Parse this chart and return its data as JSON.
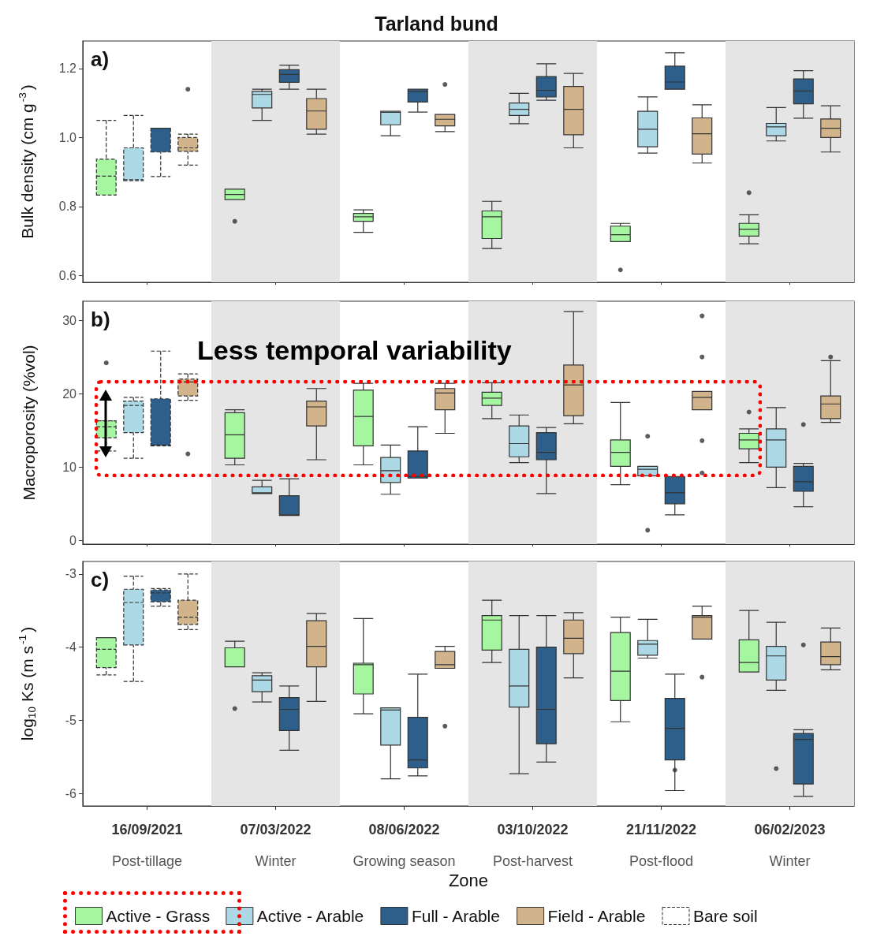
{
  "chart_data": [
    {
      "type": "box",
      "title": "Tarland bund",
      "ylabel": "Bulk density (cm g$^{-3}$)",
      "annotations": [
        "a)"
      ],
      "categories": [
        "16/09/2021\nPost-tillage",
        "07/03/2022\nWinter",
        "08/06/2022\nGrowing season",
        "03/10/2022\nPost-harvest",
        "21/11/2022\nPost-flood",
        "06/02/2023\nWinter"
      ],
      "ylim": [
        0.58,
        1.28
      ],
      "yticks": [
        0.6,
        0.8,
        {
          "value": 1,
          "label": "1.0"
        },
        1.2
      ],
      "tick_labels": "y",
      "grid": false,
      "legend": false,
      "bands": [
        {
          "axis": "x",
          "from": "07/03/2022\nWinter",
          "to": "07/03/2022\nWinter",
          "color": "#e5e5e5"
        },
        {
          "axis": "x",
          "from": "03/10/2022\nPost-harvest",
          "to": "03/10/2022\nPost-harvest",
          "color": "#e5e5e5"
        },
        {
          "axis": "x",
          "from": "06/02/2023\nWinter",
          "to": "06/02/2023\nWinter",
          "color": "#e5e5e5"
        }
      ],
      "series": [
        {
          "color": "#a6f5a0",
          "boxes": [
            {
              "low": 0.833,
              "q1": 0.833,
              "median": 0.888,
              "q3": 0.937,
              "high": 1.05
            },
            {
              "low": 0.82,
              "q1": 0.82,
              "median": 0.835,
              "q3": 0.85,
              "high": 0.85,
              "outliers": [
                0.757
              ]
            },
            {
              "low": 0.725,
              "q1": 0.757,
              "median": 0.77,
              "q3": 0.78,
              "high": 0.79
            },
            {
              "low": 0.678,
              "q1": 0.707,
              "median": 0.77,
              "q3": 0.787,
              "high": 0.815
            },
            {
              "low": 0.698,
              "q1": 0.698,
              "median": 0.718,
              "q3": 0.743,
              "high": 0.751,
              "outliers": [
                0.616
              ]
            },
            {
              "low": 0.692,
              "q1": 0.714,
              "median": 0.734,
              "q3": 0.751,
              "high": 0.776,
              "outliers": [
                0.84
              ]
            }
          ]
        },
        {
          "color": "#add8e6",
          "boxes": [
            {
              "low": 0.875,
              "q1": 0.875,
              "median": 0.878,
              "q3": 0.97,
              "high": 1.064
            },
            {
              "low": 1.05,
              "q1": 1.086,
              "median": 1.125,
              "q3": 1.134,
              "high": 1.14
            },
            {
              "low": 1.005,
              "q1": 1.037,
              "median": 1.073,
              "q3": 1.076,
              "high": 1.076
            },
            {
              "low": 1.04,
              "q1": 1.064,
              "median": 1.082,
              "q3": 1.1,
              "high": 1.128
            },
            {
              "low": 0.955,
              "q1": 0.973,
              "median": 1.024,
              "q3": 1.076,
              "high": 1.118
            },
            {
              "low": 0.99,
              "q1": 1.005,
              "median": 1.031,
              "q3": 1.041,
              "high": 1.087
            }
          ]
        },
        {
          "color": "#2e5f8a",
          "boxes": [
            {
              "low": 0.887,
              "q1": 0.958,
              "median": 1.027,
              "q3": 1.027,
              "high": 1.027
            },
            {
              "low": 1.14,
              "q1": 1.16,
              "median": 1.183,
              "q3": 1.197,
              "high": 1.21
            },
            {
              "low": 1.074,
              "q1": 1.103,
              "median": 1.134,
              "q3": 1.14,
              "high": 1.14
            },
            {
              "low": 1.108,
              "q1": 1.118,
              "median": 1.137,
              "q3": 1.177,
              "high": 1.214
            },
            {
              "low": 1.14,
              "q1": 1.14,
              "median": 1.161,
              "q3": 1.207,
              "high": 1.246
            },
            {
              "low": 1.056,
              "q1": 1.098,
              "median": 1.135,
              "q3": 1.17,
              "high": 1.194
            }
          ]
        },
        {
          "color": "#d2b48c",
          "boxes": [
            {
              "low": 0.92,
              "q1": 0.96,
              "median": 0.97,
              "q3": 1.0,
              "high": 1.01,
              "outliers": [
                1.14
              ]
            },
            {
              "low": 1.01,
              "q1": 1.024,
              "median": 1.077,
              "q3": 1.113,
              "high": 1.14
            },
            {
              "low": 1.017,
              "q1": 1.034,
              "median": 1.053,
              "q3": 1.067,
              "high": 1.067,
              "outliers": [
                1.154
              ]
            },
            {
              "low": 0.97,
              "q1": 1.008,
              "median": 1.082,
              "q3": 1.148,
              "high": 1.186
            },
            {
              "low": 0.926,
              "q1": 0.952,
              "median": 1.011,
              "q3": 1.057,
              "high": 1.095
            },
            {
              "low": 0.958,
              "q1": 1.0,
              "median": 1.027,
              "q3": 1.054,
              "high": 1.092
            }
          ]
        },
        {
          "line_style": "dashed",
          "x": [
            "16/09/2021\nPost-tillage"
          ],
          "values": [
            null
          ]
        }
      ]
    },
    {
      "type": "box",
      "ylabel": "Macroporosity (%vol)",
      "annotations": [
        "b)",
        "Less temporal variability"
      ],
      "categories": [
        "16/09/2021\nPost-tillage",
        "07/03/2022\nWinter",
        "08/06/2022\nGrowing season",
        "03/10/2022\nPost-harvest",
        "21/11/2022\nPost-flood",
        "06/02/2023\nWinter"
      ],
      "ylim": [
        -0.5,
        32.6
      ],
      "yticks": [
        0,
        10,
        20,
        30
      ],
      "tick_labels": "y",
      "grid": false,
      "legend": false,
      "bands": [
        {
          "axis": "x",
          "from": "07/03/2022\nWinter",
          "to": "07/03/2022\nWinter",
          "color": "#e5e5e5"
        },
        {
          "axis": "x",
          "from": "03/10/2022\nPost-harvest",
          "to": "03/10/2022\nPost-harvest",
          "color": "#e5e5e5"
        },
        {
          "axis": "x",
          "from": "06/02/2023\nWinter",
          "to": "06/02/2023\nWinter",
          "color": "#e5e5e5"
        }
      ],
      "series": [
        {
          "color": "#a6f5a0",
          "boxes": [
            {
              "low": 12.2,
              "q1": 14.0,
              "median": 15.5,
              "q3": 16.3,
              "high": 16.3,
              "outliers": [
                24.2
              ]
            },
            {
              "low": 10.3,
              "q1": 11.2,
              "median": 14.4,
              "q3": 17.4,
              "high": 17.8
            },
            {
              "low": 10.3,
              "q1": 12.9,
              "median": 16.9,
              "q3": 20.5,
              "high": 21.4
            },
            {
              "low": 16.6,
              "q1": 18.4,
              "median": 19.4,
              "q3": 20.2,
              "high": 21.5
            },
            {
              "low": 7.6,
              "q1": 10.1,
              "median": 12.0,
              "q3": 13.7,
              "high": 18.8
            },
            {
              "low": 10.6,
              "q1": 12.5,
              "median": 13.7,
              "q3": 14.6,
              "high": 15.2,
              "outliers": [
                17.5
              ]
            }
          ]
        },
        {
          "color": "#add8e6",
          "boxes": [
            {
              "low": 11.2,
              "q1": 14.7,
              "median": 18.4,
              "q3": 19.0,
              "high": 19.5
            },
            {
              "low": 6.4,
              "q1": 6.4,
              "median": 6.5,
              "q3": 7.3,
              "high": 8.2
            },
            {
              "low": 6.3,
              "q1": 7.9,
              "median": 9.5,
              "q3": 11.3,
              "high": 13.0
            },
            {
              "low": 10.6,
              "q1": 11.4,
              "median": 13.2,
              "q3": 15.6,
              "high": 17.1
            },
            {
              "low": 8.8,
              "q1": 8.8,
              "median": 9.7,
              "q3": 10.1,
              "high": 10.1,
              "outliers": [
                14.2,
                1.4
              ]
            },
            {
              "low": 7.2,
              "q1": 10.0,
              "median": 13.7,
              "q3": 15.2,
              "high": 18.1
            }
          ]
        },
        {
          "color": "#2e5f8a",
          "boxes": [
            {
              "low": 12.9,
              "q1": 12.9,
              "median": 13.0,
              "q3": 19.3,
              "high": 25.8
            },
            {
              "low": 3.4,
              "q1": 3.4,
              "median": 3.5,
              "q3": 6.1,
              "high": 8.4
            },
            {
              "low": 8.5,
              "q1": 8.5,
              "median": 8.7,
              "q3": 12.2,
              "high": 15.5
            },
            {
              "low": 6.4,
              "q1": 11.0,
              "median": 12.0,
              "q3": 14.7,
              "high": 15.4
            },
            {
              "low": 3.5,
              "q1": 5.0,
              "median": 6.5,
              "q3": 8.7,
              "high": 8.7
            },
            {
              "low": 4.6,
              "q1": 6.7,
              "median": 8.0,
              "q3": 10.1,
              "high": 10.5,
              "outliers": [
                15.8
              ]
            }
          ]
        },
        {
          "color": "#d2b48c",
          "boxes": [
            {
              "low": 19.1,
              "q1": 19.7,
              "median": 21.6,
              "q3": 22.0,
              "high": 22.7,
              "outliers": [
                11.8
              ]
            },
            {
              "low": 11.0,
              "q1": 15.6,
              "median": 18.2,
              "q3": 19.0,
              "high": 20.7
            },
            {
              "low": 14.6,
              "q1": 17.8,
              "median": 20.1,
              "q3": 20.7,
              "high": 21.4
            },
            {
              "low": 15.9,
              "q1": 17.0,
              "median": 21.2,
              "q3": 23.9,
              "high": 31.2
            },
            {
              "low": 17.8,
              "q1": 17.8,
              "median": 19.5,
              "q3": 20.3,
              "high": 20.3,
              "outliers": [
                30.6,
                25.0,
                13.6,
                9.2
              ]
            },
            {
              "low": 16.1,
              "q1": 16.6,
              "median": 18.6,
              "q3": 19.7,
              "high": 24.5,
              "outliers": [
                25.0
              ]
            }
          ]
        },
        {
          "line_style": "dashed",
          "x": [
            "16/09/2021\nPost-tillage"
          ],
          "values": [
            null
          ]
        }
      ]
    },
    {
      "type": "box",
      "ylabel": "log$_{10}$ Ks (m s$^{-1}$)",
      "xlabel": "Zone",
      "annotations": [
        "c)"
      ],
      "categories": [
        "16/09/2021\nPost-tillage",
        "07/03/2022\nWinter",
        "08/06/2022\nGrowing season",
        "03/10/2022\nPost-harvest",
        "21/11/2022\nPost-flood",
        "06/02/2023\nWinter"
      ],
      "ylim": [
        -6.17,
        -2.83
      ],
      "yticks": [
        -6,
        -5,
        -4,
        -3
      ],
      "grid": false,
      "legend": "bottom",
      "bands": [
        {
          "axis": "x",
          "from": "07/03/2022\nWinter",
          "to": "07/03/2022\nWinter",
          "color": "#e5e5e5"
        },
        {
          "axis": "x",
          "from": "03/10/2022\nPost-harvest",
          "to": "03/10/2022\nPost-harvest",
          "color": "#e5e5e5"
        },
        {
          "axis": "x",
          "from": "06/02/2023\nWinter",
          "to": "06/02/2023\nWinter",
          "color": "#e5e5e5"
        }
      ],
      "series": [
        {
          "name": "Active - Grass",
          "color": "#a6f5a0",
          "boxes": [
            {
              "low": -4.38,
              "q1": -4.28,
              "median": -4.03,
              "q3": -3.87,
              "high": -3.87
            },
            {
              "low": -4.27,
              "q1": -4.27,
              "median": -4.27,
              "q3": -4.01,
              "high": -3.92,
              "outliers": [
                -4.84
              ]
            },
            {
              "low": -4.91,
              "q1": -4.64,
              "median": -4.24,
              "q3": -4.22,
              "high": -3.61
            },
            {
              "low": -4.21,
              "q1": -4.04,
              "median": -3.63,
              "q3": -3.57,
              "high": -3.36
            },
            {
              "low": -5.02,
              "q1": -4.73,
              "median": -4.33,
              "q3": -3.8,
              "high": -3.59
            },
            {
              "low": -4.34,
              "q1": -4.34,
              "median": -4.21,
              "q3": -3.9,
              "high": -3.5
            }
          ]
        },
        {
          "name": "Active - Arable",
          "color": "#add8e6",
          "boxes": [
            {
              "low": -4.47,
              "q1": -3.97,
              "median": -3.39,
              "q3": -3.21,
              "high": -3.03
            },
            {
              "low": -4.75,
              "q1": -4.61,
              "median": -4.45,
              "q3": -4.39,
              "high": -4.35
            },
            {
              "low": -5.8,
              "q1": -5.34,
              "median": -4.86,
              "q3": -4.83,
              "high": -4.83
            },
            {
              "low": -5.73,
              "q1": -4.82,
              "median": -4.53,
              "q3": -4.03,
              "high": -3.57
            },
            {
              "low": -4.15,
              "q1": -4.11,
              "median": -3.96,
              "q3": -3.91,
              "high": -3.62
            },
            {
              "low": -4.59,
              "q1": -4.45,
              "median": -4.12,
              "q3": -3.99,
              "high": -3.66,
              "outliers": [
                -5.66
              ]
            }
          ]
        },
        {
          "name": "Full - Arable",
          "color": "#2e5f8a",
          "boxes": [
            {
              "low": -3.44,
              "q1": -3.38,
              "median": -3.26,
              "q3": -3.22,
              "high": -3.2
            },
            {
              "low": -5.41,
              "q1": -5.14,
              "median": -4.85,
              "q3": -4.69,
              "high": -4.53
            },
            {
              "low": -5.76,
              "q1": -5.65,
              "median": -5.54,
              "q3": -4.96,
              "high": -4.37
            },
            {
              "low": -5.57,
              "q1": -5.32,
              "median": -4.85,
              "q3": -4.0,
              "high": -3.57
            },
            {
              "low": -5.96,
              "q1": -5.54,
              "median": -5.11,
              "q3": -4.7,
              "high": -4.37,
              "outliers": [
                -5.68
              ]
            },
            {
              "low": -6.04,
              "q1": -5.87,
              "median": -5.26,
              "q3": -5.18,
              "high": -5.13,
              "outliers": [
                -3.97
              ]
            }
          ]
        },
        {
          "name": "Field - Arable",
          "color": "#d2b48c",
          "boxes": [
            {
              "low": -3.76,
              "q1": -3.69,
              "median": -3.59,
              "q3": -3.36,
              "high": -3.0
            },
            {
              "low": -4.74,
              "q1": -4.27,
              "median": -3.99,
              "q3": -3.64,
              "high": -3.54
            },
            {
              "low": -4.29,
              "q1": -4.29,
              "median": -4.24,
              "q3": -4.06,
              "high": -3.99,
              "outliers": [
                -5.08
              ]
            },
            {
              "low": -4.42,
              "q1": -4.09,
              "median": -3.88,
              "q3": -3.63,
              "high": -3.53
            },
            {
              "low": -3.89,
              "q1": -3.89,
              "median": -3.59,
              "q3": -3.57,
              "high": -3.44,
              "outliers": [
                -4.41
              ]
            },
            {
              "low": -4.31,
              "q1": -4.24,
              "median": -4.13,
              "q3": -3.93,
              "high": -3.74
            }
          ]
        },
        {
          "name": "Bare soil",
          "color": "#ffffff",
          "line_style": "dashed",
          "x": [
            "16/09/2021\nPost-tillage"
          ],
          "values": [
            null
          ]
        }
      ]
    }
  ]
}
